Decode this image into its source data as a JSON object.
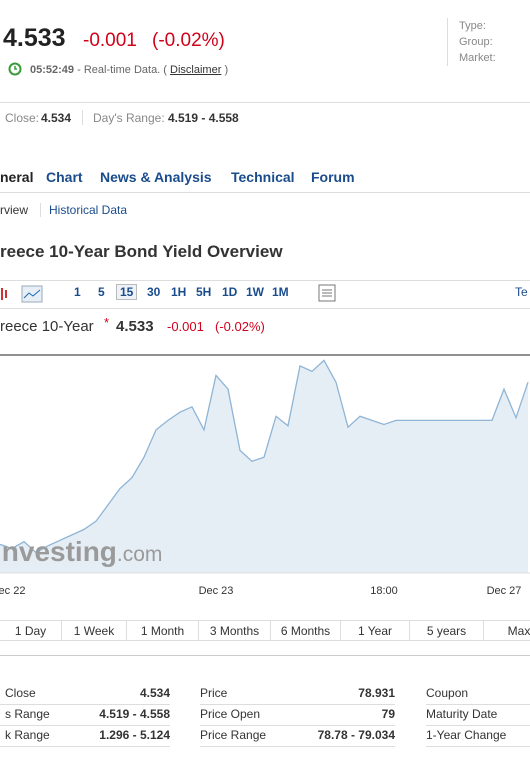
{
  "header": {
    "price": "4.533",
    "change": "-0.001",
    "change_pct": "(-0.02%)",
    "time": "05:52:49",
    "realtime": "- Real-time Data. (",
    "disclaimer": "Disclaimer",
    "close_paren": ")",
    "meta": [
      "Type:",
      "Group:",
      "Market:"
    ]
  },
  "stats": {
    "close_label": "Close:",
    "close": "4.534",
    "range_label": "Day's Range:",
    "range": "4.519 - 4.558"
  },
  "nav": [
    "neral",
    "Chart",
    "News & Analysis",
    "Technical",
    "Forum"
  ],
  "subnav": [
    "rview",
    "Historical Data"
  ],
  "title": "reece 10-Year Bond Yield Overview",
  "toolbar": {
    "intervals": [
      "1",
      "5",
      "15",
      "30",
      "1H",
      "5H",
      "1D",
      "1W",
      "1M"
    ],
    "right": "Te"
  },
  "chart_header": {
    "name": "reece 10-Year",
    "star": "*",
    "price": "4.533",
    "change": "-0.001",
    "change_pct": "(-0.02%)"
  },
  "watermark": {
    "brand": "Investing",
    "suffix": ".com"
  },
  "chart_data": {
    "type": "area",
    "color": "#8fb4d6",
    "fill": "#e6eef5",
    "categories": [
      null,
      "ec 22",
      null,
      null,
      null,
      null,
      null,
      null,
      null,
      null,
      null,
      null,
      null,
      null,
      null,
      null,
      null,
      null,
      "Dec 23",
      null,
      null,
      null,
      null,
      null,
      null,
      null,
      null,
      null,
      null,
      null,
      null,
      null,
      "18:00",
      null,
      null,
      null,
      null,
      null,
      null,
      null,
      null,
      null,
      "Dec 27",
      null,
      null
    ],
    "values": [
      4.421,
      4.418,
      4.423,
      4.415,
      4.42,
      4.424,
      4.428,
      4.432,
      4.438,
      4.45,
      4.462,
      4.47,
      4.485,
      4.505,
      4.512,
      4.518,
      4.522,
      4.505,
      4.545,
      4.535,
      4.49,
      4.482,
      4.485,
      4.515,
      4.508,
      4.552,
      4.548,
      4.556,
      4.54,
      4.507,
      4.515,
      4.512,
      4.509,
      4.512,
      4.512,
      4.512,
      4.512,
      4.512,
      4.512,
      4.512,
      4.512,
      4.512,
      4.535,
      4.514,
      4.54
    ],
    "ylim": [
      4.4,
      4.56
    ]
  },
  "ranges": [
    "1 Day",
    "1 Week",
    "1 Month",
    "3 Months",
    "6 Months",
    "1 Year",
    "5 years",
    "Max"
  ],
  "table": [
    [
      [
        "Close",
        "4.534"
      ],
      [
        "s Range",
        "4.519 - 4.558"
      ],
      [
        "k Range",
        "1.296 - 5.124"
      ]
    ],
    [
      [
        "Price",
        "78.931"
      ],
      [
        "Price Open",
        "79"
      ],
      [
        "Price Range",
        "78.78 - 79.034"
      ]
    ],
    [
      [
        "Coupon"
      ],
      [
        "Maturity Date"
      ],
      [
        "1-Year Change"
      ]
    ]
  ]
}
